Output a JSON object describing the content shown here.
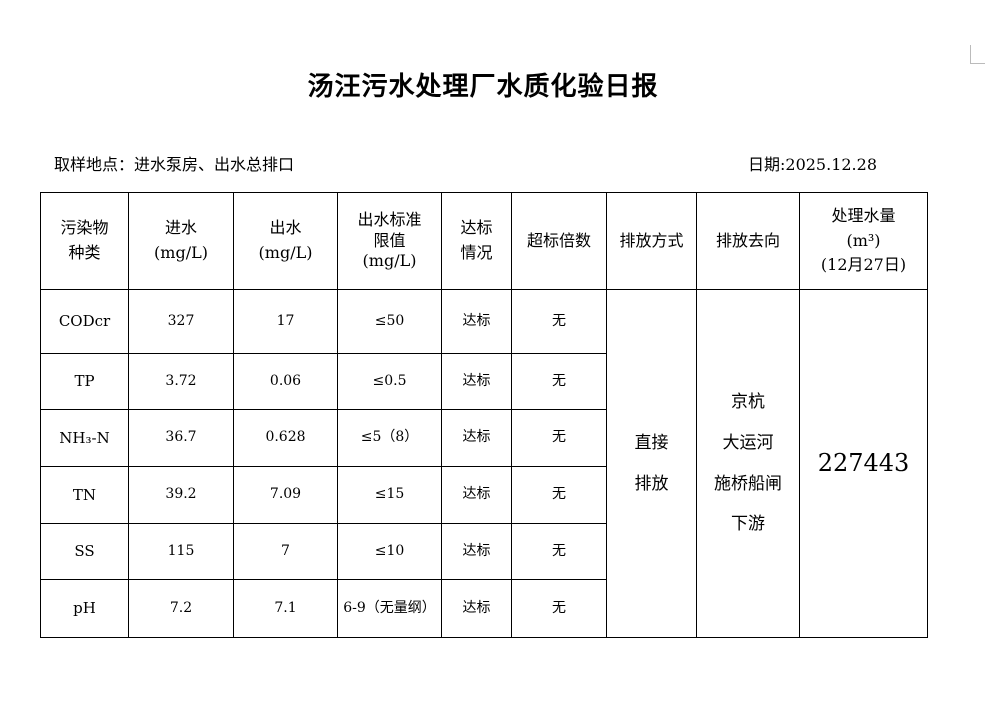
{
  "title": "汤汪污水处理厂水质化验日报",
  "location": "取样地点：进水泵房、出水总排口",
  "date": "日期:2025.12.28",
  "headers": {
    "pollutant": [
      "污染物",
      "种类"
    ],
    "inflow": [
      "进水",
      "(mg/L)"
    ],
    "outflow": [
      "出水",
      "(mg/L)"
    ],
    "limit": [
      "出水标准",
      "限值",
      "(mg/L)"
    ],
    "status": [
      "达标",
      "情况"
    ],
    "exceed": "超标倍数",
    "method": "排放方式",
    "destination": "排放去向",
    "volume": [
      "处理水量",
      "(m³)",
      "(12月27日)"
    ]
  },
  "rows": [
    {
      "name": "CODcr",
      "in": "327",
      "out": "17",
      "limit": "≤50",
      "status": "达标",
      "exceed": "无"
    },
    {
      "name": "TP",
      "in": "3.72",
      "out": "0.06",
      "limit": "≤0.5",
      "status": "达标",
      "exceed": "无"
    },
    {
      "name": "NH₃-N",
      "in": "36.7",
      "out": "0.628",
      "limit": "≤5（8）",
      "status": "达标",
      "exceed": "无"
    },
    {
      "name": "TN",
      "in": "39.2",
      "out": "7.09",
      "limit": "≤15",
      "status": "达标",
      "exceed": "无"
    },
    {
      "name": "SS",
      "in": "115",
      "out": "7",
      "limit": "≤10",
      "status": "达标",
      "exceed": "无"
    },
    {
      "name": "pH",
      "in": "7.2",
      "out": "7.1",
      "limit": "6-9（无量纲）",
      "status": "达标",
      "exceed": "无"
    }
  ],
  "method": [
    "直接",
    "排放"
  ],
  "destination": [
    "京杭",
    "大运河",
    "施桥船闸",
    "下游"
  ],
  "volume": "227443"
}
